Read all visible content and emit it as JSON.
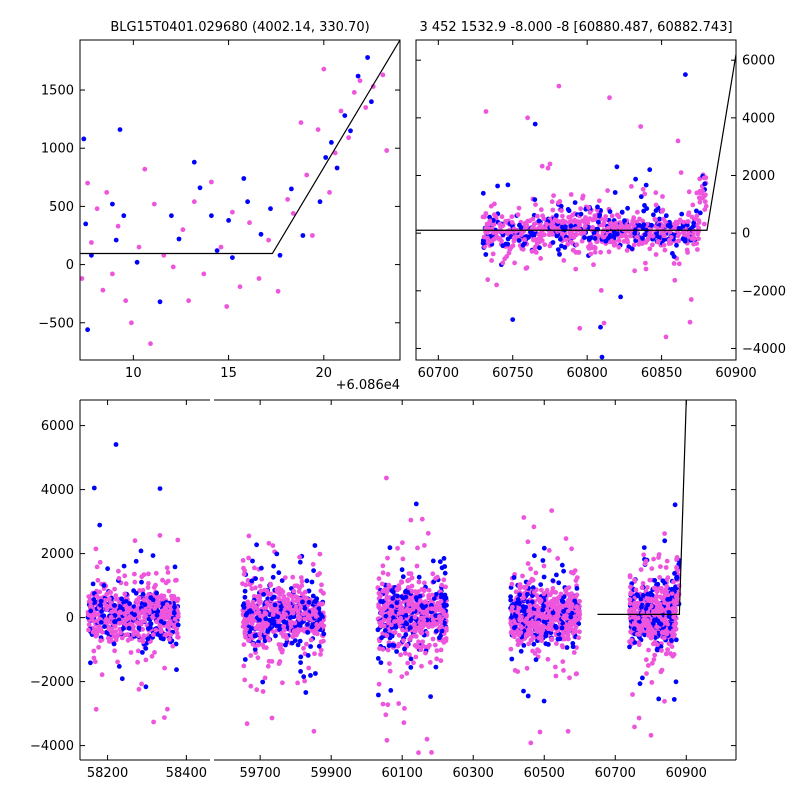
{
  "colors": {
    "blue": "#0000ff",
    "pink": "#ee55dd",
    "line": "#000000"
  },
  "chart_data": [
    {
      "id": "zoom",
      "type": "scatter",
      "title": "BLG15T0401.029680 (4002.14, 330.70)",
      "x_offset_label": "+6.086e4",
      "xlim": [
        7.2,
        24.0
      ],
      "ylim": [
        -820,
        1930
      ],
      "x_ticks": [
        10,
        15,
        20
      ],
      "x_tick_labels": [
        "10",
        "15",
        "20"
      ],
      "y_ticks": [
        -500,
        0,
        500,
        1000,
        1500
      ],
      "y_tick_labels": [
        "−500",
        "0",
        "500",
        "1000",
        "1500"
      ],
      "y_axis_side": "left",
      "model_line": [
        [
          7.2,
          95
        ],
        [
          17.3,
          95
        ],
        [
          24.0,
          1930
        ]
      ],
      "series": [
        {
          "color": "blue",
          "points": [
            [
              7.4,
              1080
            ],
            [
              7.5,
              350
            ],
            [
              7.6,
              -560
            ],
            [
              7.8,
              80
            ],
            [
              8.9,
              520
            ],
            [
              9.1,
              210
            ],
            [
              9.3,
              1160
            ],
            [
              9.5,
              420
            ],
            [
              10.2,
              20
            ],
            [
              11.4,
              -320
            ],
            [
              12.0,
              420
            ],
            [
              12.4,
              220
            ],
            [
              13.2,
              880
            ],
            [
              13.5,
              660
            ],
            [
              14.1,
              420
            ],
            [
              14.4,
              120
            ],
            [
              15.0,
              380
            ],
            [
              15.2,
              60
            ],
            [
              15.8,
              740
            ],
            [
              16.0,
              540
            ],
            [
              16.7,
              260
            ],
            [
              17.2,
              480
            ],
            [
              17.7,
              80
            ],
            [
              18.3,
              650
            ],
            [
              18.9,
              250
            ],
            [
              19.8,
              540
            ],
            [
              20.1,
              920
            ],
            [
              20.4,
              1050
            ],
            [
              20.7,
              830
            ],
            [
              21.1,
              1280
            ],
            [
              21.4,
              1150
            ],
            [
              21.8,
              1620
            ],
            [
              22.3,
              1780
            ],
            [
              22.5,
              1400
            ],
            [
              22.8,
              1950
            ]
          ]
        },
        {
          "color": "pink",
          "points": [
            [
              7.3,
              -120
            ],
            [
              7.6,
              700
            ],
            [
              7.8,
              190
            ],
            [
              8.1,
              480
            ],
            [
              8.4,
              -220
            ],
            [
              8.6,
              620
            ],
            [
              8.9,
              -80
            ],
            [
              9.2,
              330
            ],
            [
              9.6,
              -310
            ],
            [
              9.9,
              -500
            ],
            [
              10.3,
              150
            ],
            [
              10.6,
              820
            ],
            [
              10.9,
              -680
            ],
            [
              11.1,
              520
            ],
            [
              11.6,
              80
            ],
            [
              12.1,
              -20
            ],
            [
              12.6,
              300
            ],
            [
              12.9,
              -310
            ],
            [
              13.2,
              540
            ],
            [
              13.7,
              -80
            ],
            [
              14.1,
              710
            ],
            [
              14.6,
              150
            ],
            [
              14.9,
              -360
            ],
            [
              15.2,
              450
            ],
            [
              15.6,
              -190
            ],
            [
              16.1,
              360
            ],
            [
              16.6,
              -120
            ],
            [
              17.1,
              210
            ],
            [
              17.6,
              -230
            ],
            [
              18.1,
              560
            ],
            [
              18.4,
              440
            ],
            [
              18.8,
              1220
            ],
            [
              19.1,
              770
            ],
            [
              19.4,
              250
            ],
            [
              19.7,
              1160
            ],
            [
              20.0,
              1680
            ],
            [
              20.3,
              620
            ],
            [
              20.6,
              960
            ],
            [
              20.9,
              1320
            ],
            [
              21.3,
              1090
            ],
            [
              21.6,
              1480
            ],
            [
              21.9,
              1580
            ],
            [
              22.2,
              1350
            ],
            [
              22.6,
              1530
            ],
            [
              23.1,
              1630
            ],
            [
              23.3,
              980
            ]
          ]
        }
      ]
    },
    {
      "id": "last_season",
      "type": "scatter",
      "title": "3 452 1532.9 -8.000 -8 [60880.487, 60882.743]",
      "xlim": [
        60685,
        60900
      ],
      "ylim": [
        -4400,
        6700
      ],
      "x_ticks": [
        60700,
        60750,
        60800,
        60850,
        60900
      ],
      "x_tick_labels": [
        "60700",
        "60750",
        "60800",
        "60850",
        "60900"
      ],
      "y_ticks": [
        -4000,
        -2000,
        0,
        2000,
        4000,
        6000
      ],
      "y_tick_labels": [
        "−4000",
        "−2000",
        "0",
        "2000",
        "4000",
        "6000"
      ],
      "y_axis_side": "right",
      "model_line": [
        [
          60685,
          100
        ],
        [
          60880.5,
          100
        ],
        [
          60900,
          6200
        ]
      ],
      "cloud": {
        "x_range": [
          60730,
          60880
        ],
        "sigma": 550
      },
      "outliers": [
        [
          60750,
          -3000
        ],
        [
          60760,
          4000
        ],
        [
          60781,
          5100
        ],
        [
          60810,
          -4300
        ],
        [
          60815,
          4700
        ],
        [
          60836,
          3700
        ],
        [
          60866,
          5500
        ],
        [
          60861,
          3200
        ],
        [
          60853,
          -3600
        ],
        [
          60842,
          2200
        ],
        [
          60870,
          -2300
        ],
        [
          60795,
          -3300
        ],
        [
          60820,
          2300
        ],
        [
          60775,
          2400
        ]
      ]
    },
    {
      "id": "full_lightcurve",
      "type": "scatter",
      "title": "",
      "ylim": [
        -4450,
        6800
      ],
      "y_ticks": [
        -4000,
        -2000,
        0,
        2000,
        4000,
        6000
      ],
      "y_tick_labels": [
        "−4000",
        "−2000",
        "0",
        "2000",
        "4000",
        "6000"
      ],
      "y_axis_side": "left",
      "segments": [
        {
          "xlim": [
            58130,
            58460
          ],
          "x_ticks": [
            58200,
            58400
          ],
          "x_tick_labels": [
            "58200",
            "58400"
          ],
          "cloud_range": [
            58150,
            58380
          ],
          "sigma": 650
        },
        {
          "xlim": [
            59570,
            61040
          ],
          "x_ticks": [
            59700,
            59900,
            60100,
            60300,
            60500,
            60700,
            60900
          ],
          "x_tick_labels": [
            "59700",
            "59900",
            "60100",
            "60300",
            "60500",
            "60700",
            "60900"
          ],
          "seasons": [
            [
              59650,
              59880
            ],
            [
              60030,
              60225
            ],
            [
              60405,
              60600
            ],
            [
              60740,
              60880
            ]
          ],
          "sigma": 750
        }
      ],
      "model_line": [
        [
          60650,
          100
        ],
        [
          60880.5,
          100
        ],
        [
          60900,
          6800
        ]
      ]
    }
  ]
}
